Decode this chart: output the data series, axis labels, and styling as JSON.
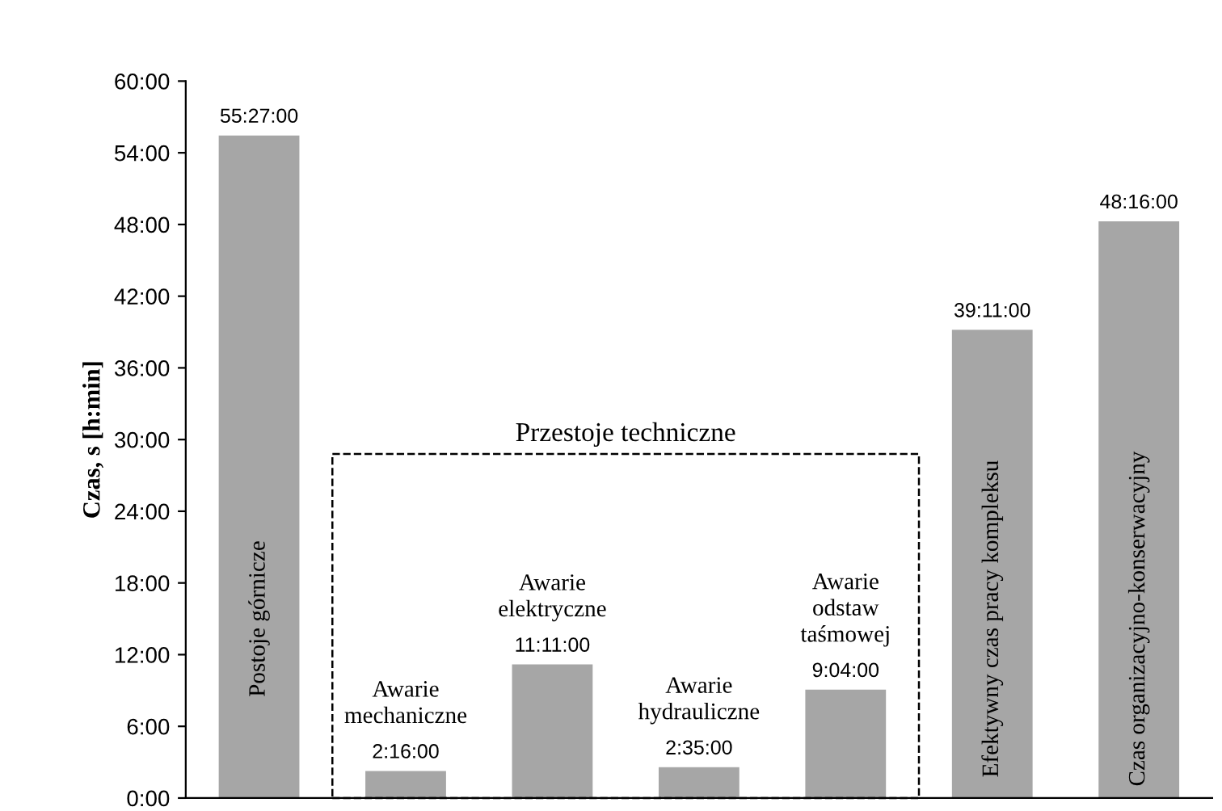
{
  "chart_data": {
    "type": "bar",
    "ylabel": "Czas, s [h:min]",
    "categories": [
      "Postoje górnicze",
      "Awarie\nmechaniczne",
      "Awarie\nelektryczne",
      "Awarie\nhydrauliczne",
      "Awarie\nodstaw\ntaśmowej",
      "Efektywny czas pracy kompleksu",
      "Czas organizacyjno-konserwacyjny"
    ],
    "values": [
      55.45,
      2.2667,
      11.1833,
      2.5833,
      9.0667,
      39.1833,
      48.2667
    ],
    "value_labels": [
      "55:27:00",
      "2:16:00",
      "11:11:00",
      "2:35:00",
      "9:04:00",
      "39:11:00",
      "48:16:00"
    ],
    "color": "#a6a6a6",
    "ylim": [
      0,
      60
    ],
    "yticks": [
      {
        "value": 0,
        "label": "0:00"
      },
      {
        "value": 6,
        "label": "6:00"
      },
      {
        "value": 12,
        "label": "12:00"
      },
      {
        "value": 18,
        "label": "18:00"
      },
      {
        "value": 24,
        "label": "24:00"
      },
      {
        "value": 30,
        "label": "30:00"
      },
      {
        "value": 36,
        "label": "36:00"
      },
      {
        "value": 42,
        "label": "42:00"
      },
      {
        "value": 48,
        "label": "48:00"
      },
      {
        "value": 54,
        "label": "54:00"
      },
      {
        "value": 60,
        "label": "60:00"
      }
    ],
    "annotations": [
      "Przestoje techniczne"
    ],
    "grid": false,
    "legend": false
  }
}
